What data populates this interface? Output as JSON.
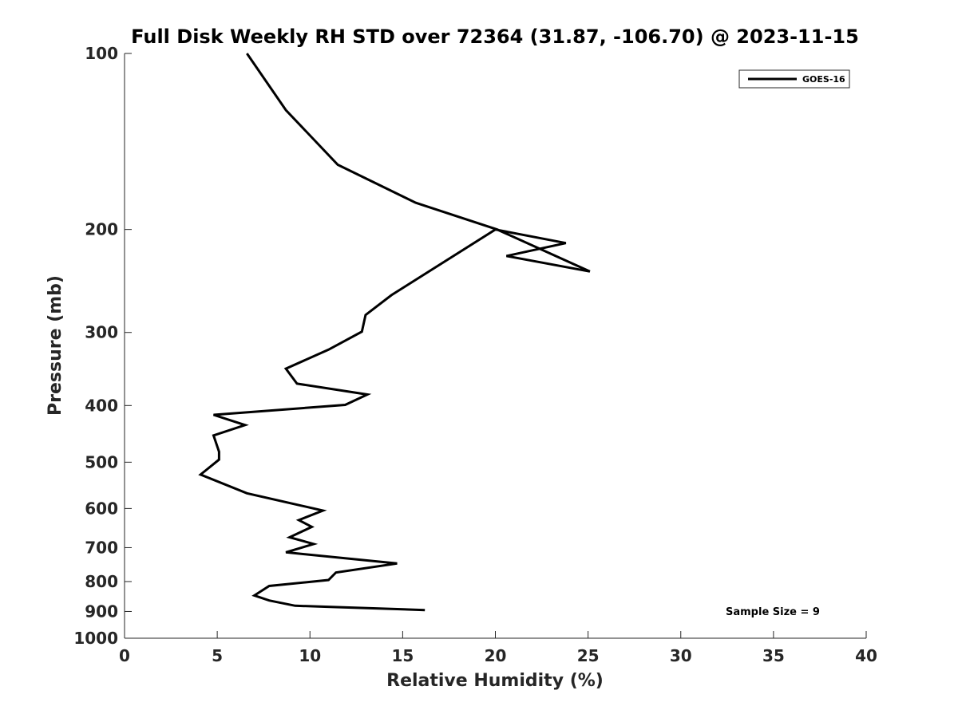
{
  "chart_data": {
    "type": "line",
    "title": "Full Disk Weekly RH STD over 72364 (31.87, -106.70) @ 2023-11-15",
    "xlabel": "Relative Humidity (%)",
    "ylabel": "Pressure (mb)",
    "xlim": [
      0,
      40
    ],
    "ylim": [
      100,
      1000
    ],
    "y_scale": "log",
    "y_reversed": true,
    "grid": false,
    "legend_position": "top-right",
    "x_ticks": [
      0,
      5,
      10,
      15,
      20,
      25,
      30,
      35,
      40
    ],
    "x_tick_labels": [
      "0",
      "5",
      "10",
      "15",
      "20",
      "25",
      "30",
      "35",
      "40"
    ],
    "y_ticks": [
      100,
      200,
      300,
      400,
      500,
      600,
      700,
      800,
      900,
      1000
    ],
    "y_tick_labels": [
      "100",
      "200",
      "300",
      "400",
      "500",
      "600",
      "700",
      "800",
      "900",
      "1000"
    ],
    "annotation": "Sample Size = 9",
    "series": [
      {
        "name": "GOES-16",
        "color": "#000000",
        "points": [
          [
            6.6,
            100
          ],
          [
            8.7,
            125
          ],
          [
            11.5,
            155
          ],
          [
            15.7,
            180
          ],
          [
            20.1,
            200
          ],
          [
            25.1,
            236
          ],
          [
            20.6,
            222
          ],
          [
            23.8,
            211
          ],
          [
            20.0,
            200
          ],
          [
            14.4,
            259
          ],
          [
            13.0,
            280
          ],
          [
            12.8,
            299
          ],
          [
            11.0,
            321
          ],
          [
            8.7,
            346
          ],
          [
            9.3,
            367
          ],
          [
            13.1,
            383
          ],
          [
            11.9,
            399
          ],
          [
            4.8,
            415
          ],
          [
            6.5,
            432
          ],
          [
            4.8,
            450
          ],
          [
            5.1,
            480
          ],
          [
            5.1,
            495
          ],
          [
            4.1,
            525
          ],
          [
            6.6,
            565
          ],
          [
            10.7,
            605
          ],
          [
            9.4,
            628
          ],
          [
            10.1,
            645
          ],
          [
            8.9,
            672
          ],
          [
            10.2,
            690
          ],
          [
            8.7,
            713
          ],
          [
            14.7,
            745
          ],
          [
            11.4,
            772
          ],
          [
            11.0,
            795
          ],
          [
            7.8,
            814
          ],
          [
            7.0,
            845
          ],
          [
            7.8,
            862
          ],
          [
            9.2,
            880
          ],
          [
            16.2,
            895
          ]
        ]
      }
    ]
  }
}
